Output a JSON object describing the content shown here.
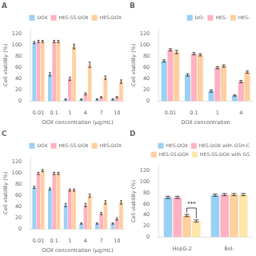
{
  "chart_data": [
    {
      "type": "bar",
      "title": "A",
      "categories": [
        "0.01",
        "0.1",
        "1",
        "4",
        "7",
        "10"
      ],
      "series": [
        {
          "name": "DOX",
          "values": [
            105,
            48,
            3,
            3,
            3,
            3
          ],
          "errors": [
            2,
            3,
            1,
            1,
            1,
            1
          ]
        },
        {
          "name": "HES-SS-DOX",
          "values": [
            107,
            107,
            40,
            13,
            7,
            7
          ],
          "errors": [
            2,
            2,
            3,
            2,
            1,
            1
          ]
        },
        {
          "name": "HES-DOX",
          "values": [
            107,
            107,
            98,
            65,
            42,
            35
          ],
          "errors": [
            2,
            2,
            4,
            5,
            3,
            3
          ]
        }
      ],
      "xlabel": "DOX concentration (μg/mL)",
      "ylabel": "Cell viability (%)",
      "ylim": [
        0,
        130
      ],
      "yticks": [
        0,
        20,
        40,
        60,
        80,
        100,
        120
      ],
      "grid": false,
      "legend": "upper right"
    },
    {
      "type": "bar",
      "title": "B",
      "categories": [
        "0.01",
        "0.1",
        "1",
        "4"
      ],
      "series": [
        {
          "name": "DO-",
          "values": [
            72,
            47,
            18,
            10
          ],
          "errors": [
            2,
            2,
            2,
            1
          ]
        },
        {
          "name": "HES-",
          "values": [
            92,
            85,
            60,
            35
          ],
          "errors": [
            2,
            2,
            2,
            2
          ]
        },
        {
          "name": "HES-",
          "values": [
            88,
            83,
            63,
            52
          ],
          "errors": [
            3,
            2,
            2,
            2
          ]
        }
      ],
      "xlabel": "DOX concentration",
      "ylabel": "Cell viability (%)",
      "ylim": [
        0,
        130
      ],
      "yticks": [
        0,
        20,
        40,
        60,
        80,
        100,
        120
      ],
      "grid": false,
      "legend": "upper right"
    },
    {
      "type": "bar",
      "title": "C",
      "categories": [
        "0.01",
        "0.1",
        "1",
        "4",
        "7",
        "10"
      ],
      "series": [
        {
          "name": "DOX",
          "values": [
            75,
            72,
            43,
            10,
            10,
            10
          ],
          "errors": [
            2,
            2,
            3,
            1,
            1,
            1
          ]
        },
        {
          "name": "HES-SS-DOX",
          "values": [
            100,
            100,
            70,
            43,
            28,
            18
          ],
          "errors": [
            2,
            2,
            2,
            3,
            2,
            2
          ]
        },
        {
          "name": "HES-DOX",
          "values": [
            105,
            100,
            70,
            60,
            48,
            48
          ],
          "errors": [
            2,
            2,
            2,
            3,
            3,
            3
          ]
        }
      ],
      "xlabel": "DOX concentration (μg/mL)",
      "ylabel": "Cell viability (%)",
      "ylim": [
        0,
        130
      ],
      "yticks": [
        0,
        20,
        40,
        60,
        80,
        100,
        120
      ],
      "grid": false,
      "legend": "upper right"
    },
    {
      "type": "bar",
      "title": "D",
      "categories": [
        "HepG-2",
        "Bel-"
      ],
      "series": [
        {
          "name": "HES-DOX",
          "values": [
            72,
            76
          ],
          "errors": [
            2,
            2
          ]
        },
        {
          "name": "HES-DOX with GSH-C",
          "values": [
            72,
            77
          ],
          "errors": [
            2,
            2
          ]
        },
        {
          "name": "HES-SS-DOX",
          "values": [
            39,
            77
          ],
          "errors": [
            2,
            2
          ]
        },
        {
          "name": "HES-SS-DOX with GS",
          "values": [
            29,
            77
          ],
          "errors": [
            2,
            2
          ]
        }
      ],
      "ylabel": "Cell viability (%)",
      "ylim": [
        0,
        130
      ],
      "yticks": [
        0,
        20,
        40,
        60,
        80,
        100,
        120
      ],
      "grid": false,
      "legend": "upper right",
      "annotations": [
        {
          "text": "***",
          "category": "HepG-2",
          "between": [
            "HES-SS-DOX",
            "HES-SS-DOX with GS"
          ]
        }
      ]
    }
  ]
}
